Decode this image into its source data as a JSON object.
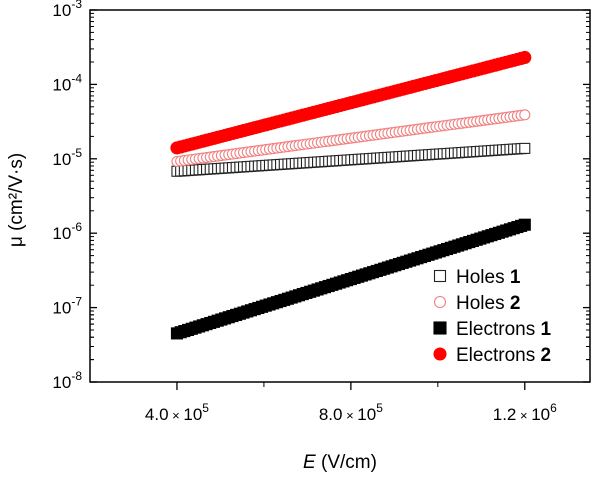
{
  "chart_data": {
    "type": "scatter",
    "xlabel": {
      "italic": "E",
      "units": " (V/cm)"
    },
    "ylabel": "μ (cm²/V·s)",
    "xlim": [
      200000,
      1350000
    ],
    "ylim_log10": [
      -8,
      -3
    ],
    "y_scale": "log",
    "x_ticks": [
      {
        "value": 400000,
        "mantissa": "4.0",
        "times": " × ",
        "base": "10",
        "exp": "5"
      },
      {
        "value": 800000,
        "mantissa": "8.0",
        "times": " × ",
        "base": "10",
        "exp": "5"
      },
      {
        "value": 1200000,
        "mantissa": "1.2",
        "times": " × ",
        "base": "10",
        "exp": "6"
      }
    ],
    "y_ticks": [
      {
        "exp_value": -3,
        "base": "10",
        "exp": "-3"
      },
      {
        "exp_value": -4,
        "base": "10",
        "exp": "-4"
      },
      {
        "exp_value": -5,
        "base": "10",
        "exp": "-5"
      },
      {
        "exp_value": -6,
        "base": "10",
        "exp": "-6"
      },
      {
        "exp_value": -7,
        "base": "10",
        "exp": "-7"
      },
      {
        "exp_value": -8,
        "base": "10",
        "exp": "-8"
      }
    ],
    "series": [
      {
        "name": "Holes",
        "number": "1",
        "marker": "square",
        "filled": false,
        "color": "#222222",
        "x_start": 400000,
        "x_end": 1200000,
        "y_start": 6.8e-06,
        "y_end": 1.38e-05,
        "n_points": 95
      },
      {
        "name": "Holes",
        "number": "2",
        "marker": "circle",
        "filled": false,
        "color": "#f08080",
        "x_start": 400000,
        "x_end": 1200000,
        "y_start": 9.2e-06,
        "y_end": 3.9e-05,
        "n_points": 95
      },
      {
        "name": "Electrons",
        "number": "1",
        "marker": "square",
        "filled": true,
        "color": "#000000",
        "x_start": 400000,
        "x_end": 1200000,
        "y_start": 4.5e-08,
        "y_end": 1.3e-06,
        "n_points": 95
      },
      {
        "name": "Electrons",
        "number": "2",
        "marker": "circle",
        "filled": true,
        "color": "#ff0000",
        "x_start": 400000,
        "x_end": 1200000,
        "y_start": 1.4e-05,
        "y_end": 0.00023,
        "n_points": 95
      }
    ],
    "legend_position": "bottom-right"
  }
}
